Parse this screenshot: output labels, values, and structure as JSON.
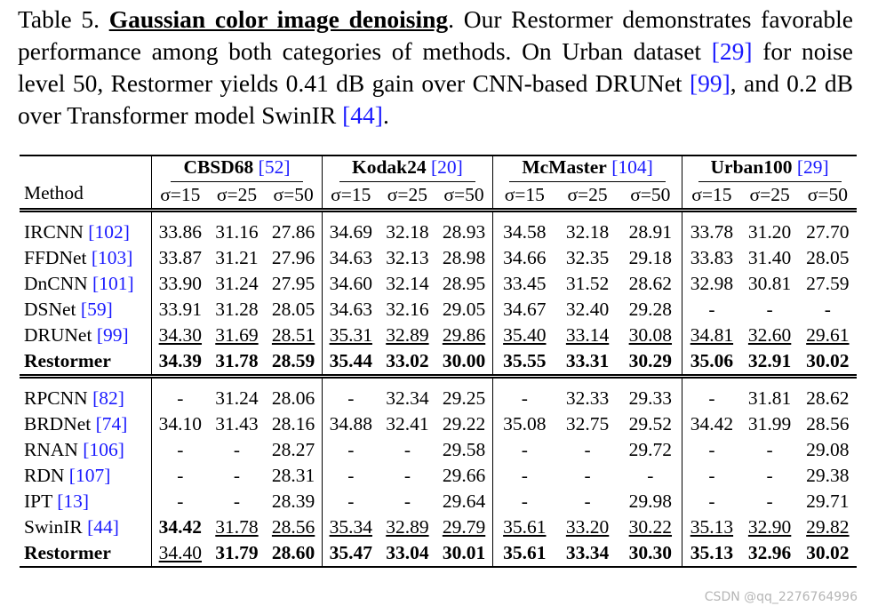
{
  "caption": {
    "label": "Table 5.",
    "title": "Gaussian color image denoising",
    "text1": ". Our Restormer demonstrates favorable performance among both categories of methods. On Urban dataset ",
    "ref1": "[29]",
    "text2": " for noise level 50, Restormer yields 0.41 dB gain over CNN-based DRUNet ",
    "ref2": "[99]",
    "text3": ", and 0.2 dB over Transformer model SwinIR ",
    "ref3": "[44]",
    "text4": "."
  },
  "table": {
    "method_header": "Method",
    "datasets": [
      {
        "name": "CBSD68",
        "ref": "[52]"
      },
      {
        "name": "Kodak24",
        "ref": "[20]"
      },
      {
        "name": "McMaster",
        "ref": "[104]"
      },
      {
        "name": "Urban100",
        "ref": "[29]"
      }
    ],
    "sigmas": [
      "σ=15",
      "σ=25",
      "σ=50"
    ],
    "groups": [
      [
        {
          "method": "IRCNN",
          "ref": "[102]",
          "cells": [
            "33.86",
            "31.16",
            "27.86",
            "34.69",
            "32.18",
            "28.93",
            "34.58",
            "32.18",
            "28.91",
            "33.78",
            "31.20",
            "27.70"
          ]
        },
        {
          "method": "FFDNet",
          "ref": "[103]",
          "cells": [
            "33.87",
            "31.21",
            "27.96",
            "34.63",
            "32.13",
            "28.98",
            "34.66",
            "32.35",
            "29.18",
            "33.83",
            "31.40",
            "28.05"
          ]
        },
        {
          "method": "DnCNN",
          "ref": "[101]",
          "cells": [
            "33.90",
            "31.24",
            "27.95",
            "34.60",
            "32.14",
            "28.95",
            "33.45",
            "31.52",
            "28.62",
            "32.98",
            "30.81",
            "27.59"
          ]
        },
        {
          "method": "DSNet",
          "ref": "[59]",
          "cells": [
            "33.91",
            "31.28",
            "28.05",
            "34.63",
            "32.16",
            "29.05",
            "34.67",
            "32.40",
            "29.28",
            "-",
            "-",
            "-"
          ]
        },
        {
          "method": "DRUNet",
          "ref": "[99]",
          "cells": [
            "34.30",
            "31.69",
            "28.51",
            "35.31",
            "32.89",
            "29.86",
            "35.40",
            "33.14",
            "30.08",
            "34.81",
            "32.60",
            "29.61"
          ],
          "underline": [
            0,
            1,
            2,
            3,
            4,
            5,
            6,
            7,
            8,
            9,
            10,
            11
          ]
        },
        {
          "method": "Restormer",
          "method_bold": true,
          "cells": [
            "34.39",
            "31.78",
            "28.59",
            "35.44",
            "33.02",
            "30.00",
            "35.55",
            "33.31",
            "30.29",
            "35.06",
            "32.91",
            "30.02"
          ],
          "bold": [
            0,
            1,
            2,
            3,
            4,
            5,
            6,
            7,
            8,
            9,
            10,
            11
          ]
        }
      ],
      [
        {
          "method": "RPCNN",
          "ref": "[82]",
          "cells": [
            "-",
            "31.24",
            "28.06",
            "-",
            "32.34",
            "29.25",
            "-",
            "32.33",
            "29.33",
            "-",
            "31.81",
            "28.62"
          ]
        },
        {
          "method": "BRDNet",
          "ref": "[74]",
          "cells": [
            "34.10",
            "31.43",
            "28.16",
            "34.88",
            "32.41",
            "29.22",
            "35.08",
            "32.75",
            "29.52",
            "34.42",
            "31.99",
            "28.56"
          ]
        },
        {
          "method": "RNAN",
          "ref": "[106]",
          "cells": [
            "-",
            "-",
            "28.27",
            "-",
            "-",
            "29.58",
            "-",
            "-",
            "29.72",
            "-",
            "-",
            "29.08"
          ]
        },
        {
          "method": "RDN",
          "ref": "[107]",
          "cells": [
            "-",
            "-",
            "28.31",
            "-",
            "-",
            "29.66",
            "-",
            "-",
            "-",
            "-",
            "-",
            "29.38"
          ]
        },
        {
          "method": "IPT",
          "ref": "[13]",
          "cells": [
            "-",
            "-",
            "28.39",
            "-",
            "-",
            "29.64",
            "-",
            "-",
            "29.98",
            "-",
            "-",
            "29.71"
          ]
        },
        {
          "method": "SwinIR",
          "ref": "[44]",
          "cells": [
            "34.42",
            "31.78",
            "28.56",
            "35.34",
            "32.89",
            "29.79",
            "35.61",
            "33.20",
            "30.22",
            "35.13",
            "32.90",
            "29.82"
          ],
          "bold": [
            0
          ],
          "underline": [
            1,
            2,
            3,
            4,
            5,
            6,
            7,
            8,
            9,
            10,
            11
          ]
        },
        {
          "method": "Restormer",
          "method_bold": true,
          "cells": [
            "34.40",
            "31.79",
            "28.60",
            "35.47",
            "33.04",
            "30.01",
            "35.61",
            "33.34",
            "30.30",
            "35.13",
            "32.96",
            "30.02"
          ],
          "underline": [
            0
          ],
          "bold": [
            1,
            2,
            3,
            4,
            5,
            6,
            7,
            8,
            9,
            10,
            11
          ]
        }
      ]
    ]
  },
  "watermark": "CSDN @qq_2276764996"
}
